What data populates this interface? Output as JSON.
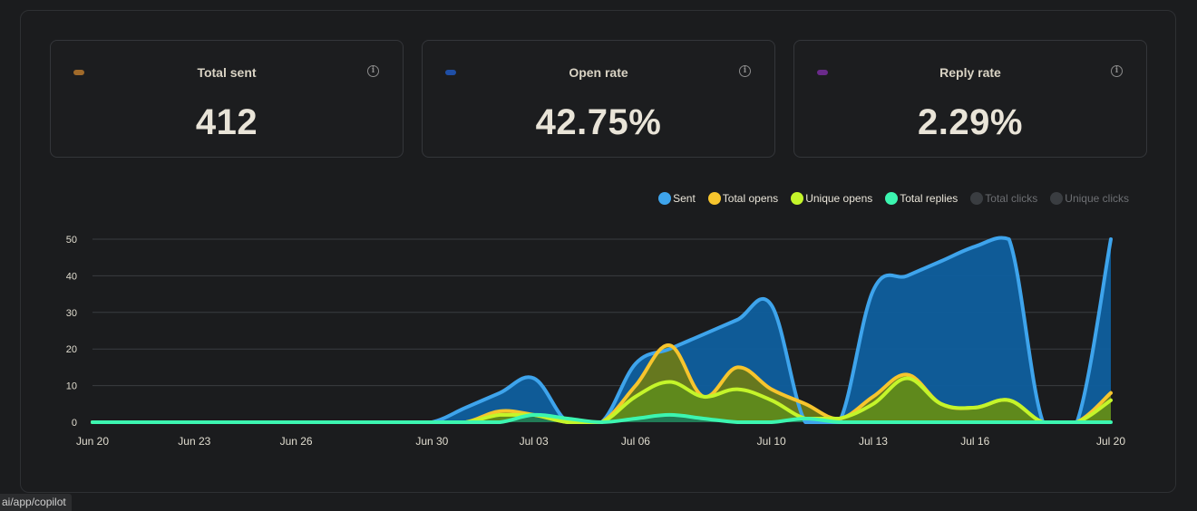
{
  "cards": [
    {
      "title": "Total sent",
      "value": "412",
      "color": "#a06a2a"
    },
    {
      "title": "Open rate",
      "value": "42.75%",
      "color": "#1f4fa6"
    },
    {
      "title": "Reply rate",
      "value": "2.29%",
      "color": "#6a2a8a"
    }
  ],
  "legend": [
    {
      "label": "Sent",
      "color": "#3ea4ec",
      "active": true
    },
    {
      "label": "Total opens",
      "color": "#f7c52d",
      "active": true
    },
    {
      "label": "Unique opens",
      "color": "#c4f52a",
      "active": true
    },
    {
      "label": "Total replies",
      "color": "#3cf5b0",
      "active": true
    },
    {
      "label": "Total clicks",
      "color": "#3a3d41",
      "active": false
    },
    {
      "label": "Unique clicks",
      "color": "#3a3d41",
      "active": false
    }
  ],
  "status_url": "ai/app/copilot",
  "chart_data": {
    "type": "area",
    "ylim": [
      0,
      50
    ],
    "yticks": [
      0,
      10,
      20,
      30,
      40,
      50
    ],
    "x": [
      "Jun 20",
      "Jun 21",
      "Jun 22",
      "Jun 23",
      "Jun 24",
      "Jun 25",
      "Jun 26",
      "Jun 27",
      "Jun 28",
      "Jun 29",
      "Jun 30",
      "Jul 01",
      "Jul 02",
      "Jul 03",
      "Jul 04",
      "Jul 05",
      "Jul 06",
      "Jul 07",
      "Jul 08",
      "Jul 09",
      "Jul 10",
      "Jul 11",
      "Jul 12",
      "Jul 13",
      "Jul 14",
      "Jul 15",
      "Jul 16",
      "Jul 17",
      "Jul 18",
      "Jul 19",
      "Jul 20"
    ],
    "xtick_labels": [
      "Jun 20",
      "Jun 23",
      "Jun 26",
      "Jun 30",
      "Jul 03",
      "Jul 06",
      "Jul 10",
      "Jul 13",
      "Jul 16",
      "Jul 20"
    ],
    "series": [
      {
        "name": "Sent",
        "color": "#3ea4ec",
        "fill": "#0f5f9e",
        "values": [
          0,
          0,
          0,
          0,
          0,
          0,
          0,
          0,
          0,
          0,
          0,
          4,
          8,
          12,
          0,
          0,
          16,
          20,
          24,
          28,
          32,
          0,
          0,
          36,
          40,
          44,
          48,
          50,
          0,
          0,
          50
        ]
      },
      {
        "name": "Total opens",
        "color": "#f7c52d",
        "fill": "#6b7a18",
        "values": [
          0,
          0,
          0,
          0,
          0,
          0,
          0,
          0,
          0,
          0,
          0,
          0,
          3,
          2,
          0,
          0,
          10,
          21,
          7,
          15,
          9,
          5,
          1,
          7,
          13,
          5,
          4,
          6,
          0,
          0,
          8
        ]
      },
      {
        "name": "Unique opens",
        "color": "#c4f52a",
        "fill": "#5f8a1c",
        "values": [
          0,
          0,
          0,
          0,
          0,
          0,
          0,
          0,
          0,
          0,
          0,
          0,
          2,
          2,
          0,
          0,
          7,
          11,
          7,
          9,
          6,
          1,
          1,
          5,
          12,
          5,
          4,
          6,
          0,
          0,
          6
        ]
      },
      {
        "name": "Total replies",
        "color": "#3cf5b0",
        "fill": "#1f7a5a",
        "values": [
          0,
          0,
          0,
          0,
          0,
          0,
          0,
          0,
          0,
          0,
          0,
          0,
          0,
          2,
          1,
          0,
          1,
          2,
          1,
          0,
          0,
          1,
          0,
          0,
          0,
          0,
          0,
          0,
          0,
          0,
          0
        ]
      }
    ]
  }
}
